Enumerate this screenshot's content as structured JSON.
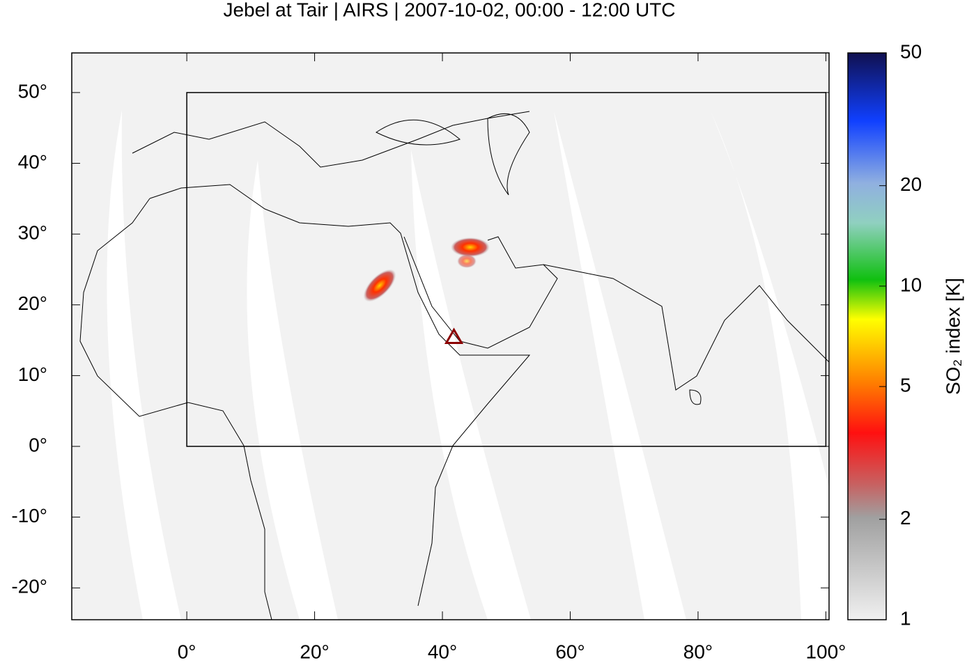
{
  "chart_data": {
    "type": "map",
    "title": "Jebel at Tair | AIRS | 2007-10-02, 00:00 - 12:00 UTC",
    "xlim": [
      -18,
      100.5
    ],
    "ylim": [
      -24.5,
      55.6
    ],
    "xticks": [
      {
        "value": 0,
        "label": "0°"
      },
      {
        "value": 20,
        "label": "20°"
      },
      {
        "value": 40,
        "label": "40°"
      },
      {
        "value": 60,
        "label": "60°"
      },
      {
        "value": 80,
        "label": "80°"
      },
      {
        "value": 100,
        "label": "100°"
      }
    ],
    "yticks": [
      {
        "value": -20,
        "label": "-20°"
      },
      {
        "value": -10,
        "label": "-10°"
      },
      {
        "value": 0,
        "label": "0°"
      },
      {
        "value": 10,
        "label": "10°"
      },
      {
        "value": 20,
        "label": "20°"
      },
      {
        "value": 30,
        "label": "30°"
      },
      {
        "value": 40,
        "label": "40°"
      },
      {
        "value": 50,
        "label": "50°"
      }
    ],
    "box": {
      "lon": [
        0,
        100
      ],
      "lat": [
        0,
        50
      ]
    },
    "volcano": {
      "lon": 41.8,
      "lat": 15.5,
      "color": "#8b0000"
    },
    "colorbar": {
      "label": "SO₂ index [K]",
      "lim": [
        1,
        50
      ],
      "log": true,
      "ticks": [
        1,
        2,
        5,
        10,
        20,
        50
      ]
    }
  }
}
